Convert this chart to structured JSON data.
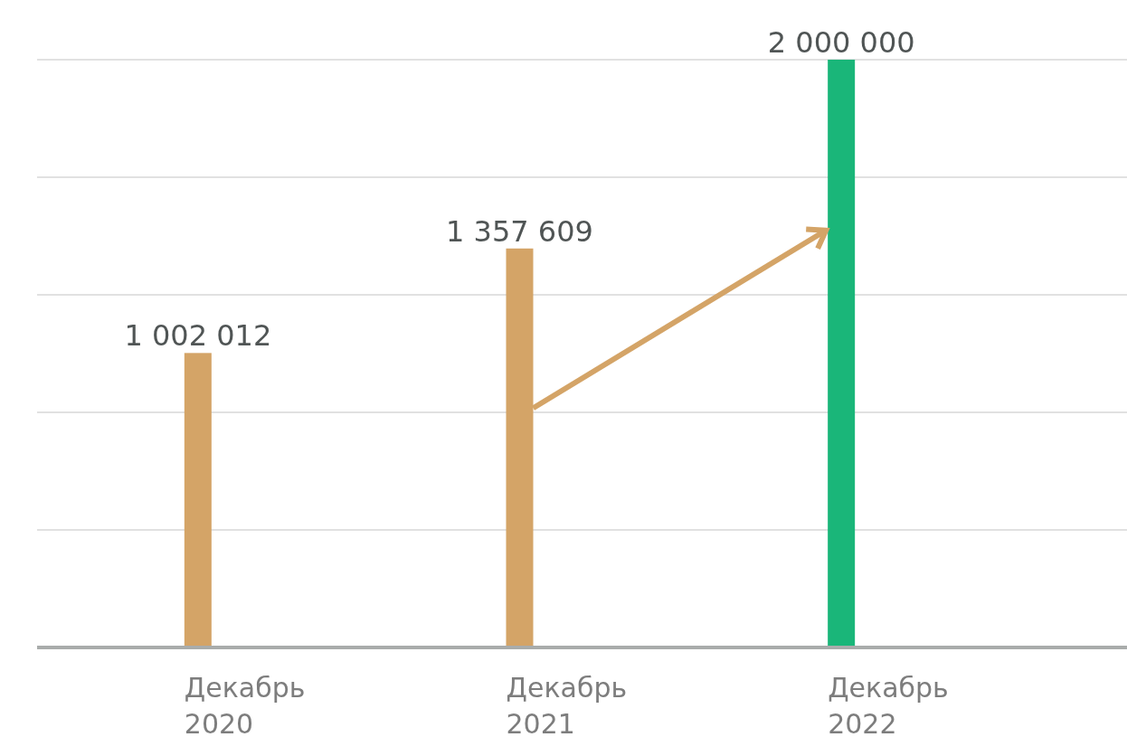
{
  "chart_data": {
    "type": "bar",
    "categories": [
      "Декабрь 2020",
      "Декабрь 2021",
      "Декабрь 2022"
    ],
    "values": [
      1002012,
      1357609,
      2000000
    ],
    "colors": [
      "#d4a467",
      "#d4a467",
      "#1ab679"
    ],
    "value_labels": [
      "1 002 012",
      "1 357 609",
      "2 000 000"
    ],
    "grid": "y",
    "tick_labels": "x"
  }
}
